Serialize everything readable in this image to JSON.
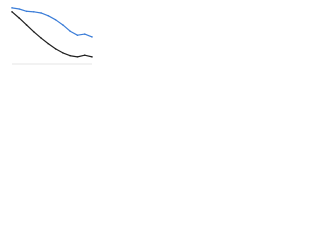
{
  "chart_data": {
    "type": "line",
    "categories": [
      null,
      null,
      null,
      null,
      null,
      null,
      null,
      null,
      null,
      null,
      null,
      null
    ],
    "series": [
      {
        "color": "#3b7dd8",
        "values": [
          95,
          93,
          89,
          88,
          86,
          81,
          74,
          65,
          54,
          47,
          49,
          44
        ]
      },
      {
        "color": "#1f1f1f",
        "values": [
          88,
          77,
          65,
          53,
          42,
          32,
          23,
          16,
          11,
          9,
          12,
          9
        ]
      }
    ],
    "ylim": [
      0,
      100
    ]
  }
}
